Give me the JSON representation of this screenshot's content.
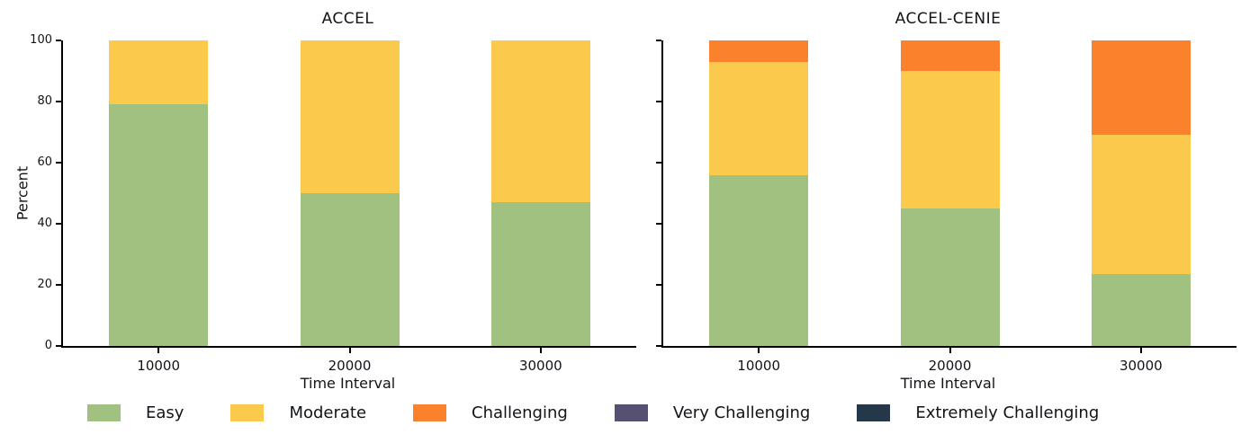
{
  "figure": {
    "background": "#ffffff",
    "text_color": "#111418"
  },
  "chart_data": [
    {
      "type": "bar",
      "stacked": true,
      "title": "ACCEL",
      "xlabel": "Time Interval",
      "ylabel": "Percent",
      "categories": [
        "10000",
        "20000",
        "30000"
      ],
      "ylim": [
        0,
        100
      ],
      "y_ticks": [
        0,
        20,
        40,
        60,
        80,
        100
      ],
      "show_y_tick_labels": true,
      "grid": false,
      "series": [
        {
          "name": "Easy",
          "color": "#a0c17f",
          "values": [
            79,
            50,
            47
          ]
        },
        {
          "name": "Moderate",
          "color": "#fbc94b",
          "values": [
            21,
            50,
            53
          ]
        },
        {
          "name": "Challenging",
          "color": "#fb812d",
          "values": [
            0,
            0,
            0
          ]
        },
        {
          "name": "Very Challenging",
          "color": "#565073",
          "values": [
            0,
            0,
            0
          ]
        },
        {
          "name": "Extremely Challenging",
          "color": "#25384a",
          "values": [
            0,
            0,
            0
          ]
        }
      ]
    },
    {
      "type": "bar",
      "stacked": true,
      "title": "ACCEL-CENIE",
      "xlabel": "Time Interval",
      "ylabel": "",
      "categories": [
        "10000",
        "20000",
        "30000"
      ],
      "ylim": [
        0,
        100
      ],
      "y_ticks": [
        0,
        20,
        40,
        60,
        80,
        100
      ],
      "show_y_tick_labels": false,
      "grid": false,
      "series": [
        {
          "name": "Easy",
          "color": "#a0c17f",
          "values": [
            56,
            45,
            23.5
          ]
        },
        {
          "name": "Moderate",
          "color": "#fbc94b",
          "values": [
            37,
            45,
            45.5
          ]
        },
        {
          "name": "Challenging",
          "color": "#fb812d",
          "values": [
            7,
            10,
            31
          ]
        },
        {
          "name": "Very Challenging",
          "color": "#565073",
          "values": [
            0,
            0,
            0
          ]
        },
        {
          "name": "Extremely Challenging",
          "color": "#25384a",
          "values": [
            0,
            0,
            0
          ]
        }
      ]
    }
  ],
  "legend": {
    "position": "bottom-center",
    "items": [
      {
        "label": "Easy",
        "color": "#a0c17f"
      },
      {
        "label": "Moderate",
        "color": "#fbc94b"
      },
      {
        "label": "Challenging",
        "color": "#fb812d"
      },
      {
        "label": "Very Challenging",
        "color": "#565073"
      },
      {
        "label": "Extremely Challenging",
        "color": "#25384a"
      }
    ]
  }
}
